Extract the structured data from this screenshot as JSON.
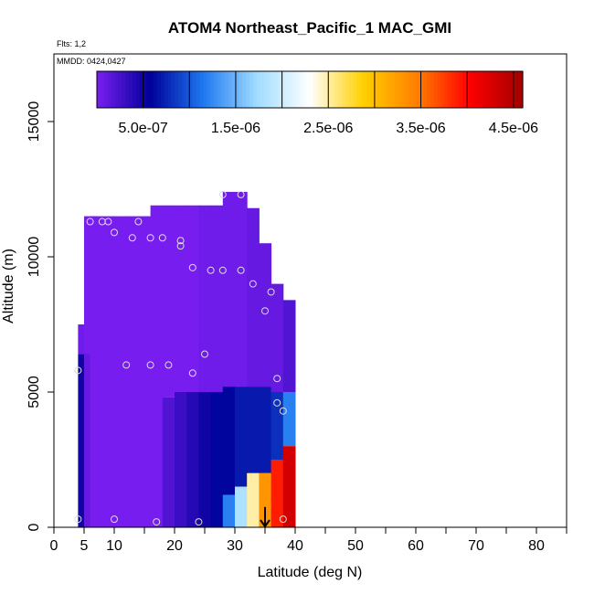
{
  "chart_data": {
    "type": "heatmap",
    "title": "ATOM4 Northeast_Pacific_1 MAC_GMI",
    "flights_text": "Flts: 1,2",
    "dates_text": "MMDD: 0424,0427",
    "xlabel": "Latitude (deg N)",
    "ylabel": "Altitude (m)",
    "xlim": [
      0,
      85
    ],
    "ylim": [
      0,
      17500
    ],
    "xticks": [
      0,
      5,
      10,
      20,
      30,
      40,
      50,
      60,
      70,
      80
    ],
    "xtick_labels": [
      "0",
      "5",
      "10",
      "20",
      "30",
      "40",
      "50",
      "60",
      "70",
      "80"
    ],
    "yticks": [
      0,
      5000,
      10000,
      15000
    ],
    "ytick_labels": [
      "0",
      "5000",
      "10000",
      "15000"
    ],
    "colorbar": {
      "min": 0,
      "max": 4.6e-06,
      "tick_values": [
        5e-07,
        1.5e-06,
        2.5e-06,
        3.5e-06,
        4.5e-06
      ],
      "tick_labels": [
        "5.0e-07",
        "1.5e-06",
        "2.5e-06",
        "3.5e-06",
        "4.5e-06"
      ],
      "colors": [
        "#7a1ef0",
        "#00009a",
        "#1e78f0",
        "#a0dcff",
        "#ffffff",
        "#ffd000",
        "#ff8000",
        "#ff0000",
        "#a00000"
      ]
    },
    "columns": [
      {
        "lat": 4,
        "top": 7500,
        "base": 6400,
        "value": 5e-08
      },
      {
        "lat": 4,
        "top": 6400,
        "base": 0,
        "value": 5e-07
      },
      {
        "lat": 5,
        "top": 11500,
        "base": 6400,
        "value": 1e-08
      },
      {
        "lat": 5,
        "top": 6400,
        "base": 0,
        "value": 1e-07
      },
      {
        "lat": 6,
        "top": 11500,
        "base": 0,
        "value": 1e-08
      },
      {
        "lat": 8,
        "top": 11500,
        "base": 0,
        "value": 1e-08
      },
      {
        "lat": 10,
        "top": 11500,
        "base": 0,
        "value": 1e-08
      },
      {
        "lat": 12,
        "top": 11500,
        "base": 0,
        "value": 1e-08
      },
      {
        "lat": 14,
        "top": 11500,
        "base": 0,
        "value": 1e-08
      },
      {
        "lat": 16,
        "top": 11900,
        "base": 0,
        "value": 1e-08
      },
      {
        "lat": 18,
        "top": 11900,
        "base": 4800,
        "value": 1e-08
      },
      {
        "lat": 18,
        "top": 4800,
        "base": 0,
        "value": 2e-07
      },
      {
        "lat": 20,
        "top": 11900,
        "base": 5000,
        "value": 1e-08
      },
      {
        "lat": 20,
        "top": 5000,
        "base": 0,
        "value": 3e-07
      },
      {
        "lat": 22,
        "top": 11900,
        "base": 5000,
        "value": 1e-08
      },
      {
        "lat": 22,
        "top": 5000,
        "base": 0,
        "value": 4e-07
      },
      {
        "lat": 24,
        "top": 11900,
        "base": 5000,
        "value": 5e-08
      },
      {
        "lat": 24,
        "top": 5000,
        "base": 0,
        "value": 5e-07
      },
      {
        "lat": 26,
        "top": 11900,
        "base": 5000,
        "value": 5e-08
      },
      {
        "lat": 26,
        "top": 5000,
        "base": 0,
        "value": 6e-07
      },
      {
        "lat": 28,
        "top": 12400,
        "base": 5200,
        "value": 5e-08
      },
      {
        "lat": 28,
        "top": 5200,
        "base": 1200,
        "value": 6e-07
      },
      {
        "lat": 28,
        "top": 1200,
        "base": 0,
        "value": 1.2e-06
      },
      {
        "lat": 30,
        "top": 12400,
        "base": 5200,
        "value": 5e-08
      },
      {
        "lat": 30,
        "top": 5200,
        "base": 1500,
        "value": 7e-07
      },
      {
        "lat": 30,
        "top": 1500,
        "base": 0,
        "value": 1.8e-06
      },
      {
        "lat": 32,
        "top": 11800,
        "base": 5200,
        "value": 1e-07
      },
      {
        "lat": 32,
        "top": 5200,
        "base": 2000,
        "value": 7e-07
      },
      {
        "lat": 32,
        "top": 2000,
        "base": 0,
        "value": 2.5e-06
      },
      {
        "lat": 34,
        "top": 10500,
        "base": 5200,
        "value": 1e-07
      },
      {
        "lat": 34,
        "top": 5200,
        "base": 2000,
        "value": 7e-07
      },
      {
        "lat": 34,
        "top": 2000,
        "base": 0,
        "value": 3.3e-06
      },
      {
        "lat": 36,
        "top": 9000,
        "base": 5000,
        "value": 1e-07
      },
      {
        "lat": 36,
        "top": 5000,
        "base": 2500,
        "value": 8e-07
      },
      {
        "lat": 36,
        "top": 2500,
        "base": 0,
        "value": 3.9e-06
      },
      {
        "lat": 38,
        "top": 8400,
        "base": 5000,
        "value": 2e-07
      },
      {
        "lat": 38,
        "top": 5000,
        "base": 3000,
        "value": 1.2e-06
      },
      {
        "lat": 38,
        "top": 3000,
        "base": 0,
        "value": 4.3e-06
      }
    ],
    "points": [
      {
        "lat": 4,
        "alt": 300
      },
      {
        "lat": 4,
        "alt": 5800
      },
      {
        "lat": 6,
        "alt": 11300
      },
      {
        "lat": 8,
        "alt": 11300
      },
      {
        "lat": 9,
        "alt": 11300
      },
      {
        "lat": 10,
        "alt": 300
      },
      {
        "lat": 10,
        "alt": 10900
      },
      {
        "lat": 12,
        "alt": 6000
      },
      {
        "lat": 13,
        "alt": 10700
      },
      {
        "lat": 14,
        "alt": 11300
      },
      {
        "lat": 16,
        "alt": 6000
      },
      {
        "lat": 16,
        "alt": 10700
      },
      {
        "lat": 17,
        "alt": 200
      },
      {
        "lat": 18,
        "alt": 10700
      },
      {
        "lat": 19,
        "alt": 6000
      },
      {
        "lat": 21,
        "alt": 10400
      },
      {
        "lat": 21,
        "alt": 10600
      },
      {
        "lat": 23,
        "alt": 9600
      },
      {
        "lat": 23,
        "alt": 5700
      },
      {
        "lat": 24,
        "alt": 200
      },
      {
        "lat": 25,
        "alt": 6400
      },
      {
        "lat": 26,
        "alt": 9500
      },
      {
        "lat": 28,
        "alt": 9500
      },
      {
        "lat": 28,
        "alt": 12300
      },
      {
        "lat": 31,
        "alt": 12300
      },
      {
        "lat": 31,
        "alt": 9500
      },
      {
        "lat": 33,
        "alt": 9000
      },
      {
        "lat": 35,
        "alt": 8000
      },
      {
        "lat": 36,
        "alt": 8700
      },
      {
        "lat": 37,
        "alt": 5500
      },
      {
        "lat": 37,
        "alt": 4600
      },
      {
        "lat": 38,
        "alt": 4300
      },
      {
        "lat": 38,
        "alt": 300
      }
    ],
    "arrow": {
      "lat": 35,
      "alt_top": 750,
      "alt_bottom": 0
    }
  }
}
